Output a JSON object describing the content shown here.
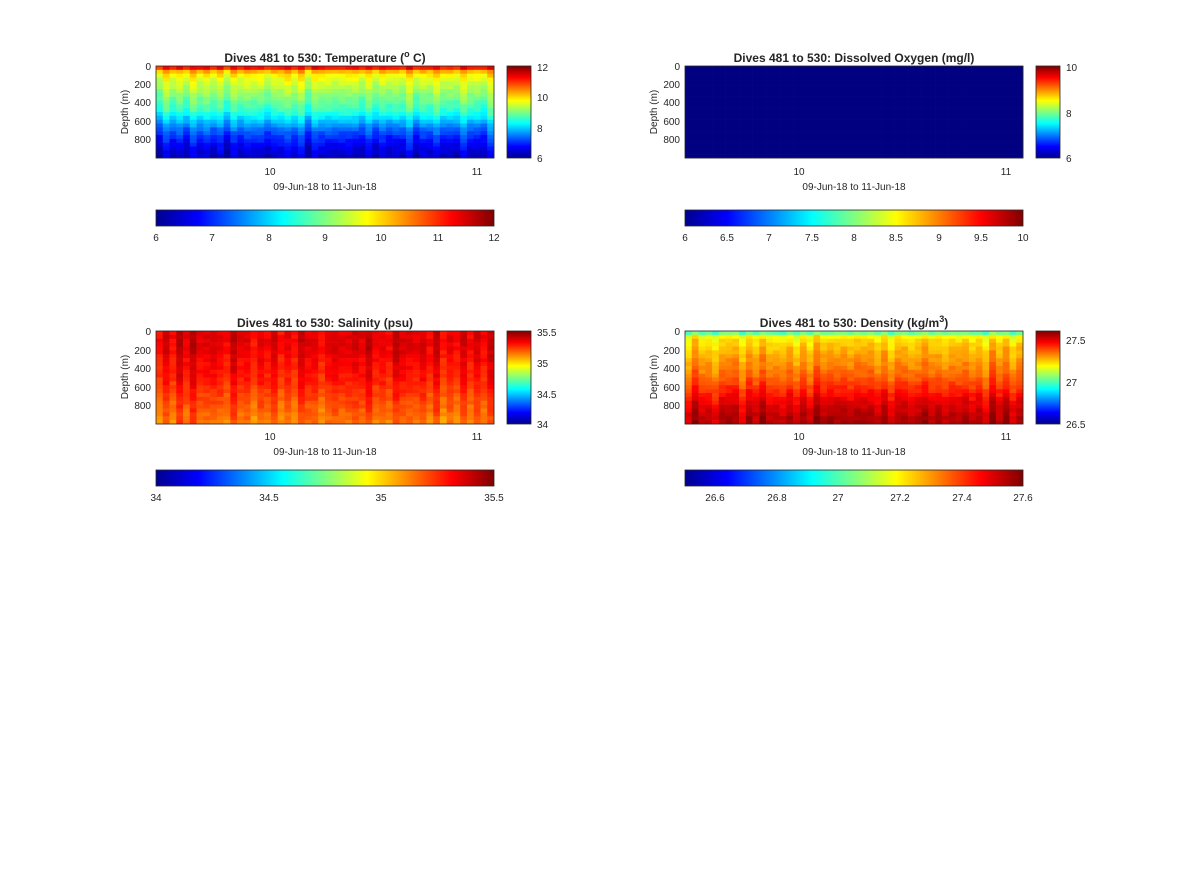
{
  "figure": {
    "colormap": "jet",
    "panels": [
      {
        "key": "temperature",
        "title_main": "Dives 481 to 530: Temperature (",
        "title_sup": "o",
        "title_after": " C)",
        "ylabel": "Depth (m)",
        "xlabel": "09-Jun-18 to 11-Jun-18",
        "yticks": [
          "0",
          "200",
          "400",
          "600",
          "800"
        ],
        "xticks": [
          "10",
          "11"
        ],
        "cbar_right_ticks": [
          "12",
          "10",
          "8",
          "6"
        ],
        "cbar_bottom_ticks": [
          "6",
          "7",
          "8",
          "9",
          "10",
          "11",
          "12"
        ]
      },
      {
        "key": "oxygen",
        "title_main": "Dives 481 to 530: Dissolved Oxygen (mg/l)",
        "title_sup": "",
        "title_after": "",
        "ylabel": "Depth (m)",
        "xlabel": "09-Jun-18 to 11-Jun-18",
        "yticks": [
          "0",
          "200",
          "400",
          "600",
          "800"
        ],
        "xticks": [
          "10",
          "11"
        ],
        "cbar_right_ticks": [
          "10",
          "8",
          "6"
        ],
        "cbar_bottom_ticks": [
          "6",
          "6.5",
          "7",
          "7.5",
          "8",
          "8.5",
          "9",
          "9.5",
          "10"
        ]
      },
      {
        "key": "salinity",
        "title_main": "Dives 481 to 530: Salinity (psu)",
        "title_sup": "",
        "title_after": "",
        "ylabel": "Depth (m)",
        "xlabel": "09-Jun-18 to 11-Jun-18",
        "yticks": [
          "0",
          "200",
          "400",
          "600",
          "800"
        ],
        "xticks": [
          "10",
          "11"
        ],
        "cbar_right_ticks": [
          "35.5",
          "35",
          "34.5",
          "34"
        ],
        "cbar_bottom_ticks": [
          "34",
          "34.5",
          "35",
          "35.5"
        ]
      },
      {
        "key": "density",
        "title_main": "Dives 481 to 530: Density (kg/m",
        "title_sup": "3",
        "title_after": ")",
        "ylabel": "Depth (m)",
        "xlabel": "09-Jun-18 to 11-Jun-18",
        "yticks": [
          "0",
          "200",
          "400",
          "600",
          "800"
        ],
        "xticks": [
          "10",
          "11"
        ],
        "cbar_right_ticks": [
          "27.5",
          "27",
          "26.5"
        ],
        "cbar_bottom_ticks": [
          "26.6",
          "26.8",
          "27",
          "27.2",
          "27.4",
          "27.6"
        ]
      }
    ]
  },
  "chart_data": [
    {
      "type": "heatmap",
      "title": "Dives 481 to 530: Temperature (o C)",
      "xlabel": "09-Jun-18 to 11-Jun-18",
      "ylabel": "Depth (m)",
      "x": "dives 481 to 530 (09-Jun-18 to 11-Jun-18)",
      "xticks": [
        "10",
        "11"
      ],
      "ylim": [
        0,
        1000
      ],
      "y_reversed": true,
      "clim": [
        6,
        12
      ],
      "colormap": "jet",
      "profile_depth_m": [
        0,
        25,
        50,
        100,
        200,
        300,
        400,
        500,
        600,
        700,
        800,
        900,
        1000
      ],
      "profile_values": [
        11.8,
        11.0,
        10.3,
        9.8,
        9.4,
        9.1,
        8.8,
        8.5,
        7.9,
        7.3,
        6.9,
        6.6,
        6.4
      ]
    },
    {
      "type": "heatmap",
      "title": "Dives 481 to 530: Dissolved Oxygen (mg/l)",
      "xlabel": "09-Jun-18 to 11-Jun-18",
      "ylabel": "Depth (m)",
      "xticks": [
        "10",
        "11"
      ],
      "ylim": [
        0,
        1000
      ],
      "y_reversed": true,
      "clim": [
        6,
        10
      ],
      "colormap": "jet",
      "profile_depth_m": [
        0,
        1000
      ],
      "profile_values": [
        6,
        6
      ]
    },
    {
      "type": "heatmap",
      "title": "Dives 481 to 530: Salinity (psu)",
      "xlabel": "09-Jun-18 to 11-Jun-18",
      "ylabel": "Depth (m)",
      "xticks": [
        "10",
        "11"
      ],
      "ylim": [
        0,
        1000
      ],
      "y_reversed": true,
      "clim": [
        34,
        35.5
      ],
      "colormap": "jet",
      "profile_depth_m": [
        0,
        50,
        100,
        200,
        300,
        400,
        500,
        600,
        700,
        800,
        900,
        1000
      ],
      "profile_values": [
        35.34,
        35.36,
        35.36,
        35.35,
        35.33,
        35.31,
        35.29,
        35.26,
        35.23,
        35.2,
        35.17,
        35.15
      ]
    },
    {
      "type": "heatmap",
      "title": "Dives 481 to 530: Density (kg/m3)",
      "xlabel": "09-Jun-18 to 11-Jun-18",
      "ylabel": "Depth (m)",
      "xticks": [
        "10",
        "11"
      ],
      "ylim": [
        0,
        1000
      ],
      "y_reversed": true,
      "clim": [
        26.5,
        27.65
      ],
      "colormap": "jet",
      "profile_depth_m": [
        0,
        20,
        50,
        100,
        200,
        300,
        400,
        500,
        600,
        700,
        800,
        900,
        1000
      ],
      "profile_values": [
        26.85,
        27.05,
        27.2,
        27.25,
        27.3,
        27.33,
        27.36,
        27.4,
        27.45,
        27.5,
        27.55,
        27.58,
        27.6
      ]
    }
  ]
}
